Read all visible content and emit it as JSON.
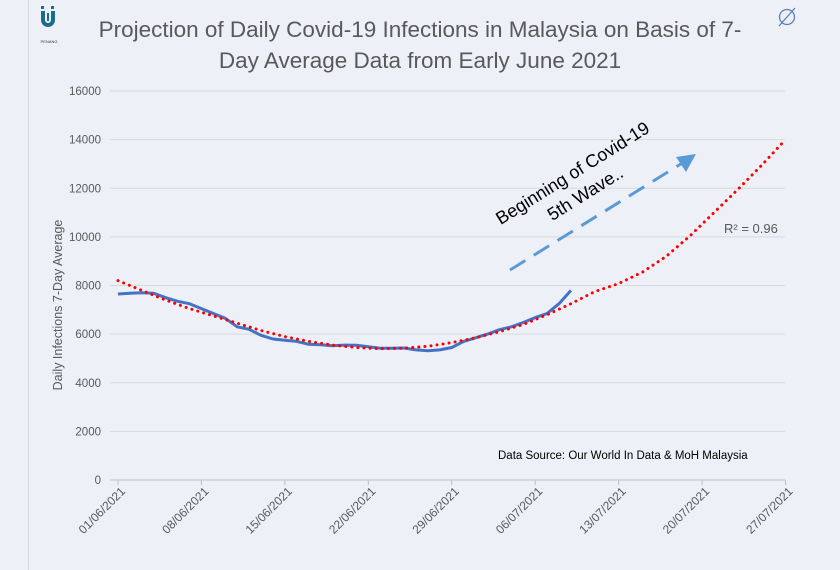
{
  "logo_text": "PENANG",
  "icons": {
    "corner": "circle-slash-icon",
    "logo": "penang-logo-icon"
  },
  "chart_data": {
    "type": "line",
    "title": "Projection of Daily Covid-19 Infections in Malaysia on Basis of 7-Day Average Data from Early June 2021",
    "ylabel": "Daily Infections 7-Day Average",
    "xlabel": "",
    "ylim": [
      0,
      16000
    ],
    "yticks": [
      0,
      2000,
      4000,
      6000,
      8000,
      10000,
      12000,
      14000,
      16000
    ],
    "xticks": [
      "01/06/2021",
      "08/06/2021",
      "15/06/2021",
      "22/06/2021",
      "29/06/2021",
      "06/07/2021",
      "13/07/2021",
      "20/07/2021",
      "27/07/2021"
    ],
    "x_start": "01/06/2021",
    "grid": true,
    "series": [
      {
        "kind": "actual",
        "color": "#4472c4",
        "x_days_from_start": [
          0,
          1,
          2,
          3,
          4,
          5,
          6,
          7,
          8,
          9,
          10,
          11,
          12,
          13,
          14,
          15,
          16,
          17,
          18,
          19,
          20,
          21,
          22,
          23,
          24,
          25,
          26,
          27,
          28,
          29,
          30,
          31,
          32,
          33,
          34,
          35,
          36,
          37,
          38
        ],
        "values": [
          7650,
          7680,
          7700,
          7680,
          7500,
          7350,
          7250,
          7050,
          6850,
          6650,
          6300,
          6200,
          5950,
          5800,
          5750,
          5700,
          5580,
          5560,
          5520,
          5550,
          5540,
          5480,
          5420,
          5420,
          5430,
          5350,
          5320,
          5350,
          5450,
          5700,
          5850,
          6000,
          6180,
          6300,
          6480,
          6680,
          6850,
          7250,
          7800
        ]
      },
      {
        "kind": "trendline",
        "color": "#ff0000",
        "x_days_from_start": [
          0,
          2,
          4,
          6,
          8,
          10,
          12,
          14,
          16,
          18,
          20,
          22,
          24,
          26,
          28,
          30,
          32,
          34,
          36,
          38,
          40,
          42,
          44,
          46,
          48,
          50,
          52,
          54,
          56
        ],
        "values": [
          8200,
          7800,
          7400,
          7050,
          6750,
          6450,
          6150,
          5900,
          5700,
          5550,
          5450,
          5400,
          5420,
          5500,
          5650,
          5850,
          6100,
          6400,
          6800,
          7250,
          7750,
          8080,
          8550,
          9200,
          10050,
          11000,
          11950,
          12950,
          14000
        ]
      }
    ],
    "annotations": {
      "r_squared": "R² = 0.96",
      "wave_line1": "Beginning of Covid-19",
      "wave_line2": "5th Wave..",
      "source": "Data Source: Our World In Data & MoH Malaysia",
      "arrow_color": "#5b9bd5"
    }
  }
}
